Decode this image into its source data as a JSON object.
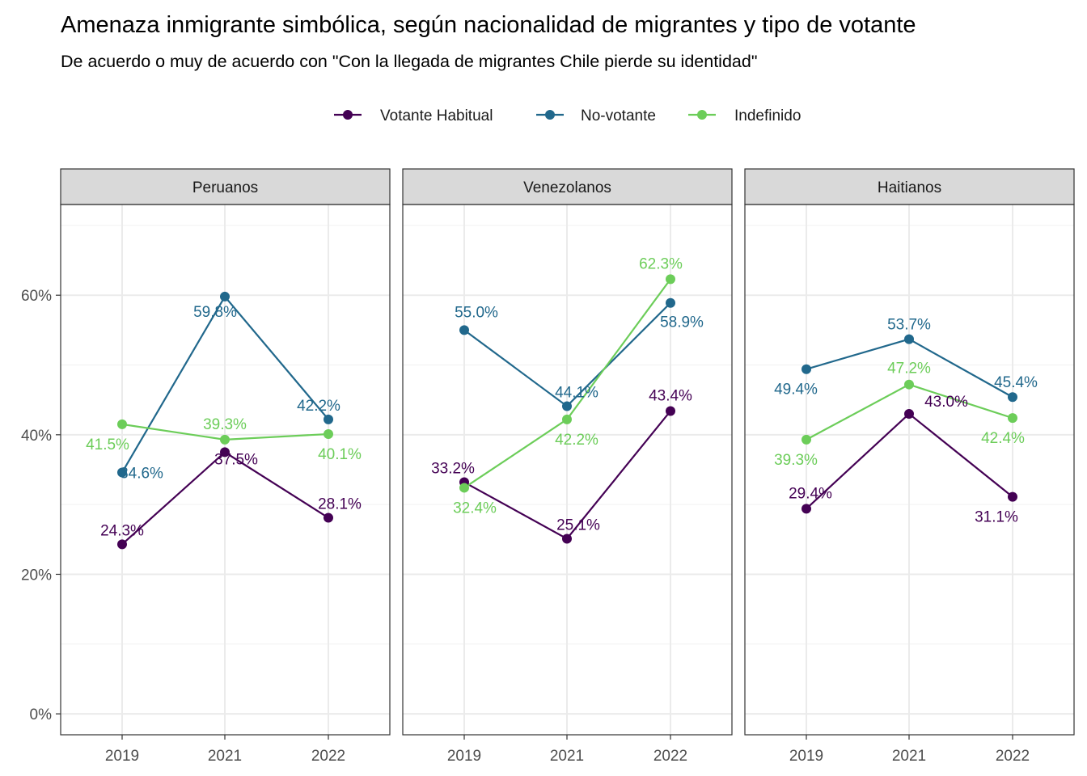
{
  "chart_data": {
    "type": "line",
    "title": "Amenaza inmigrante simbólica, según nacionalidad de migrantes y tipo de votante",
    "subtitle": "De acuerdo o muy de acuerdo con \"Con la llegada de migrantes Chile pierde su identidad\"",
    "x": [
      "2019",
      "2021",
      "2022"
    ],
    "ylim": [
      -3,
      73
    ],
    "yticks": [
      0,
      20,
      40,
      60
    ],
    "ytick_labels": [
      "0%",
      "20%",
      "40%",
      "60%"
    ],
    "grid": true,
    "legend_position": "top",
    "series_meta": [
      {
        "name": "Votante Habitual",
        "color": "#440154"
      },
      {
        "name": "No-votante",
        "color": "#21688c"
      },
      {
        "name": "Indefinido",
        "color": "#6ccd59"
      }
    ],
    "panels": [
      {
        "facet": "Peruanos",
        "series": [
          {
            "name": "Votante Habitual",
            "values": [
              24.3,
              37.5,
              28.1
            ],
            "labels": [
              "24.3%",
              "37.5%",
              "28.1%"
            ]
          },
          {
            "name": "No-votante",
            "values": [
              34.6,
              59.8,
              42.2
            ],
            "labels": [
              "34.6%",
              "59.8%",
              "42.2%"
            ]
          },
          {
            "name": "Indefinido",
            "values": [
              41.5,
              39.3,
              40.1
            ],
            "labels": [
              "41.5%",
              "39.3%",
              "40.1%"
            ]
          }
        ]
      },
      {
        "facet": "Venezolanos",
        "series": [
          {
            "name": "Votante Habitual",
            "values": [
              33.2,
              25.1,
              43.4
            ],
            "labels": [
              "33.2%",
              "25.1%",
              "43.4%"
            ]
          },
          {
            "name": "No-votante",
            "values": [
              55.0,
              44.1,
              58.9
            ],
            "labels": [
              "55.0%",
              "44.1%",
              "58.9%"
            ]
          },
          {
            "name": "Indefinido",
            "values": [
              32.4,
              42.2,
              62.3
            ],
            "labels": [
              "32.4%",
              "42.2%",
              "62.3%"
            ]
          }
        ]
      },
      {
        "facet": "Haitianos",
        "series": [
          {
            "name": "Votante Habitual",
            "values": [
              29.4,
              43.0,
              31.1
            ],
            "labels": [
              "29.4%",
              "43.0%",
              "31.1%"
            ]
          },
          {
            "name": "No-votante",
            "values": [
              49.4,
              53.7,
              45.4
            ],
            "labels": [
              "49.4%",
              "53.7%",
              "45.4%"
            ]
          },
          {
            "name": "Indefinido",
            "values": [
              39.3,
              47.2,
              42.4
            ],
            "labels": [
              "39.3%",
              "47.2%",
              "42.4%"
            ]
          }
        ]
      }
    ]
  }
}
